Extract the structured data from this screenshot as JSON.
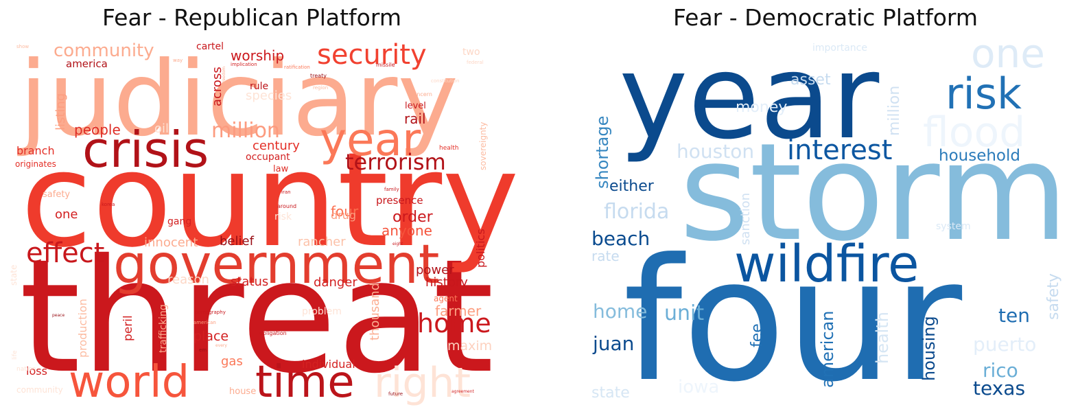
{
  "chart_data": [
    {
      "type": "wordcloud",
      "title": "Fear - Republican Platform",
      "colormap": "Reds",
      "words": [
        {
          "text": "threat",
          "weight": 1.0,
          "color": "#cb181d"
        },
        {
          "text": "country",
          "weight": 0.92,
          "color": "#ef3b2c"
        },
        {
          "text": "judiciary",
          "weight": 0.78,
          "color": "#fcab8f"
        },
        {
          "text": "government",
          "weight": 0.55,
          "color": "#e33d2e"
        },
        {
          "text": "crisis",
          "weight": 0.5,
          "color": "#b11218"
        },
        {
          "text": "world",
          "weight": 0.48,
          "color": "#f6553c"
        },
        {
          "text": "time",
          "weight": 0.48,
          "color": "#bb141a"
        },
        {
          "text": "year",
          "weight": 0.48,
          "color": "#fb7858"
        },
        {
          "text": "right",
          "weight": 0.45,
          "color": "#fee3d6"
        },
        {
          "text": "security",
          "weight": 0.33,
          "color": "#f14130"
        },
        {
          "text": "terrorism",
          "weight": 0.28,
          "color": "#b11218"
        },
        {
          "text": "effect",
          "weight": 0.3,
          "color": "#c8171c"
        },
        {
          "text": "home",
          "weight": 0.3,
          "color": "#cb181d"
        },
        {
          "text": "million",
          "weight": 0.28,
          "color": "#fc9b7f"
        },
        {
          "text": "community",
          "weight": 0.24,
          "color": "#fcab8f"
        },
        {
          "text": "worship",
          "weight": 0.18,
          "color": "#cb181d"
        },
        {
          "text": "people",
          "weight": 0.18,
          "color": "#de2d26"
        },
        {
          "text": "century",
          "weight": 0.16,
          "color": "#e32f27"
        },
        {
          "text": "order",
          "weight": 0.18,
          "color": "#cb181d"
        },
        {
          "text": "anyone",
          "weight": 0.18,
          "color": "#f5533b"
        },
        {
          "text": "four",
          "weight": 0.18,
          "color": "#fb7050"
        },
        {
          "text": "rail",
          "weight": 0.18,
          "color": "#b11218"
        },
        {
          "text": "history",
          "weight": 0.16,
          "color": "#c8171c"
        },
        {
          "text": "power",
          "weight": 0.16,
          "color": "#b11218"
        },
        {
          "text": "farmer",
          "weight": 0.18,
          "color": "#fc9e80"
        },
        {
          "text": "maxim",
          "weight": 0.16,
          "color": "#fdd1bf"
        },
        {
          "text": "status",
          "weight": 0.16,
          "color": "#d21f20"
        },
        {
          "text": "danger",
          "weight": 0.16,
          "color": "#d21f20"
        },
        {
          "text": "place",
          "weight": 0.16,
          "color": "#d21f20"
        },
        {
          "text": "gas",
          "weight": 0.16,
          "color": "#fb7858"
        },
        {
          "text": "individual",
          "weight": 0.14,
          "color": "#d42121"
        },
        {
          "text": "loss",
          "weight": 0.14,
          "color": "#d21f20"
        },
        {
          "text": "one",
          "weight": 0.16,
          "color": "#d21f20"
        },
        {
          "text": "belief",
          "weight": 0.16,
          "color": "#980c13"
        },
        {
          "text": "innocent",
          "weight": 0.15,
          "color": "#fcab8f"
        },
        {
          "text": "rancher",
          "weight": 0.15,
          "color": "#fcc1a8"
        },
        {
          "text": "reason",
          "weight": 0.15,
          "color": "#fdd7c6"
        },
        {
          "text": "listing",
          "weight": 0.15,
          "color": "#fc9e80"
        },
        {
          "text": "across",
          "weight": 0.16,
          "color": "#c8171c"
        },
        {
          "text": "species",
          "weight": 0.16,
          "color": "#fee3d6"
        },
        {
          "text": "branch",
          "weight": 0.14,
          "color": "#e32f27"
        },
        {
          "text": "occupant",
          "weight": 0.12,
          "color": "#d21f20"
        },
        {
          "text": "law",
          "weight": 0.11,
          "color": "#de2d26"
        },
        {
          "text": "drug",
          "weight": 0.13,
          "color": "#fc9e80"
        },
        {
          "text": "presence",
          "weight": 0.13,
          "color": "#c8171c"
        },
        {
          "text": "politics",
          "weight": 0.13,
          "color": "#c8171c"
        },
        {
          "text": "gang",
          "weight": 0.11,
          "color": "#d21f20"
        },
        {
          "text": "peril",
          "weight": 0.14,
          "color": "#d21f20"
        },
        {
          "text": "thousand",
          "weight": 0.15,
          "color": "#fcae92"
        },
        {
          "text": "production",
          "weight": 0.14,
          "color": "#fcbba1"
        },
        {
          "text": "trafficking",
          "weight": 0.1,
          "color": "#fcab8f"
        },
        {
          "text": "america",
          "weight": 0.13,
          "color": "#b11218"
        },
        {
          "text": "cartel",
          "weight": 0.12,
          "color": "#c8171c"
        },
        {
          "text": "rule",
          "weight": 0.12,
          "color": "#bb141a"
        },
        {
          "text": "level",
          "weight": 0.11,
          "color": "#c8171c"
        },
        {
          "text": "originates",
          "weight": 0.11,
          "color": "#e32f27"
        },
        {
          "text": "safety",
          "weight": 0.11,
          "color": "#fcab8f"
        },
        {
          "text": "oil",
          "weight": 0.14,
          "color": "#fee3d6"
        },
        {
          "text": "sovereignty",
          "weight": 0.09,
          "color": "#fcbba1"
        },
        {
          "text": "health",
          "weight": 0.07,
          "color": "#e32f27"
        },
        {
          "text": "agent",
          "weight": 0.09,
          "color": "#fb7858"
        },
        {
          "text": "problem",
          "weight": 0.11,
          "color": "#fee3d6"
        },
        {
          "text": "risk",
          "weight": 0.11,
          "color": "#fee3d6"
        },
        {
          "text": "two",
          "weight": 0.1,
          "color": "#fdd7c6"
        },
        {
          "text": "house",
          "weight": 0.09,
          "color": "#fcab8f"
        },
        {
          "text": "concern",
          "weight": 0.06,
          "color": "#fcab8f"
        },
        {
          "text": "treaty",
          "weight": 0.06,
          "color": "#980c13"
        },
        {
          "text": "missile",
          "weight": 0.06,
          "color": "#c8171c"
        },
        {
          "text": "ratification",
          "weight": 0.05,
          "color": "#fb7858"
        },
        {
          "text": "implication",
          "weight": 0.05,
          "color": "#d21f20"
        },
        {
          "text": "obligation",
          "weight": 0.05,
          "color": "#c8171c"
        },
        {
          "text": "pornography",
          "weight": 0.05,
          "color": "#c8171c"
        },
        {
          "text": "american",
          "weight": 0.05,
          "color": "#fc9e80"
        },
        {
          "text": "family",
          "weight": 0.05,
          "color": "#c8171c"
        },
        {
          "text": "around",
          "weight": 0.05,
          "color": "#c8171c"
        },
        {
          "text": "iran",
          "weight": 0.05,
          "color": "#c8171c"
        },
        {
          "text": "korea",
          "weight": 0.05,
          "color": "#c8171c"
        },
        {
          "text": "eight",
          "weight": 0.05,
          "color": "#c8171c"
        },
        {
          "text": "peace",
          "weight": 0.05,
          "color": "#980c13"
        },
        {
          "text": "future",
          "weight": 0.05,
          "color": "#980c13"
        },
        {
          "text": "agreement",
          "weight": 0.05,
          "color": "#d21f20"
        },
        {
          "text": "every",
          "weight": 0.05,
          "color": "#fcab8f"
        },
        {
          "text": "em",
          "weight": 0.05,
          "color": "#980c13"
        },
        {
          "text": "way",
          "weight": 0.05,
          "color": "#fcab8f"
        },
        {
          "text": "show",
          "weight": 0.05,
          "color": "#fcbba1"
        },
        {
          "text": "region",
          "weight": 0.05,
          "color": "#fcbba1"
        },
        {
          "text": "freedom",
          "weight": 0.04,
          "color": "#fcab8f"
        },
        {
          "text": "constitution",
          "weight": 0.04,
          "color": "#fdd7c6"
        },
        {
          "text": "federal",
          "weight": 0.04,
          "color": "#fdd7c6"
        },
        {
          "text": "state",
          "weight": 0.05,
          "color": "#fee3d6"
        },
        {
          "text": "life",
          "weight": 0.05,
          "color": "#fee3d6"
        },
        {
          "text": "nation",
          "weight": 0.05,
          "color": "#fee3d6"
        },
        {
          "text": "community",
          "weight": 0.05,
          "color": "#fee3d6"
        }
      ]
    },
    {
      "type": "wordcloud",
      "title": "Fear - Democratic Platform",
      "colormap": "Blues",
      "words": [
        {
          "text": "four",
          "weight": 1.0,
          "color": "#1f6db1"
        },
        {
          "text": "storm",
          "weight": 0.98,
          "color": "#85bcdc"
        },
        {
          "text": "year",
          "weight": 0.9,
          "color": "#0b4a8d"
        },
        {
          "text": "wildfire",
          "weight": 0.5,
          "color": "#0b55a0"
        },
        {
          "text": "risk",
          "weight": 0.42,
          "color": "#2171b5"
        },
        {
          "text": "flood",
          "weight": 0.42,
          "color": "#eef5fc"
        },
        {
          "text": "one",
          "weight": 0.42,
          "color": "#deebf7"
        },
        {
          "text": "interest",
          "weight": 0.32,
          "color": "#0d57a1"
        },
        {
          "text": "household",
          "weight": 0.2,
          "color": "#2b7bba"
        },
        {
          "text": "houston",
          "weight": 0.24,
          "color": "#d0e1f2"
        },
        {
          "text": "florida",
          "weight": 0.24,
          "color": "#c6dbef"
        },
        {
          "text": "beach",
          "weight": 0.22,
          "color": "#0a4b8f"
        },
        {
          "text": "either",
          "weight": 0.18,
          "color": "#0b4a8d"
        },
        {
          "text": "shortage",
          "weight": 0.2,
          "color": "#3787c0"
        },
        {
          "text": "home",
          "weight": 0.22,
          "color": "#85bcdc"
        },
        {
          "text": "unit",
          "weight": 0.22,
          "color": "#6baed6"
        },
        {
          "text": "juan",
          "weight": 0.22,
          "color": "#0b4a8d"
        },
        {
          "text": "fee",
          "weight": 0.18,
          "color": "#2171b5"
        },
        {
          "text": "american",
          "weight": 0.2,
          "color": "#2171b5"
        },
        {
          "text": "health",
          "weight": 0.2,
          "color": "#d6e6f4"
        },
        {
          "text": "housing",
          "weight": 0.22,
          "color": "#0b4a8d"
        },
        {
          "text": "ten",
          "weight": 0.22,
          "color": "#1f6db1"
        },
        {
          "text": "puerto",
          "weight": 0.22,
          "color": "#e3eef9"
        },
        {
          "text": "rico",
          "weight": 0.22,
          "color": "#6aaed6"
        },
        {
          "text": "texas",
          "weight": 0.22,
          "color": "#0b4a8d"
        },
        {
          "text": "safety",
          "weight": 0.2,
          "color": "#c6dbef"
        },
        {
          "text": "million",
          "weight": 0.2,
          "color": "#d0e1f2"
        },
        {
          "text": "sanction",
          "weight": 0.16,
          "color": "#d0e1f2"
        },
        {
          "text": "money",
          "weight": 0.18,
          "color": "#e3eef9"
        },
        {
          "text": "asset",
          "weight": 0.18,
          "color": "#c6dbef"
        },
        {
          "text": "rate",
          "weight": 0.16,
          "color": "#c6dbef"
        },
        {
          "text": "state",
          "weight": 0.18,
          "color": "#d6e6f4"
        },
        {
          "text": "iowa",
          "weight": 0.22,
          "color": "#eef5fc"
        },
        {
          "text": "importance",
          "weight": 0.1,
          "color": "#dbe9f6"
        },
        {
          "text": "system",
          "weight": 0.1,
          "color": "#dbe9f6"
        }
      ]
    }
  ]
}
